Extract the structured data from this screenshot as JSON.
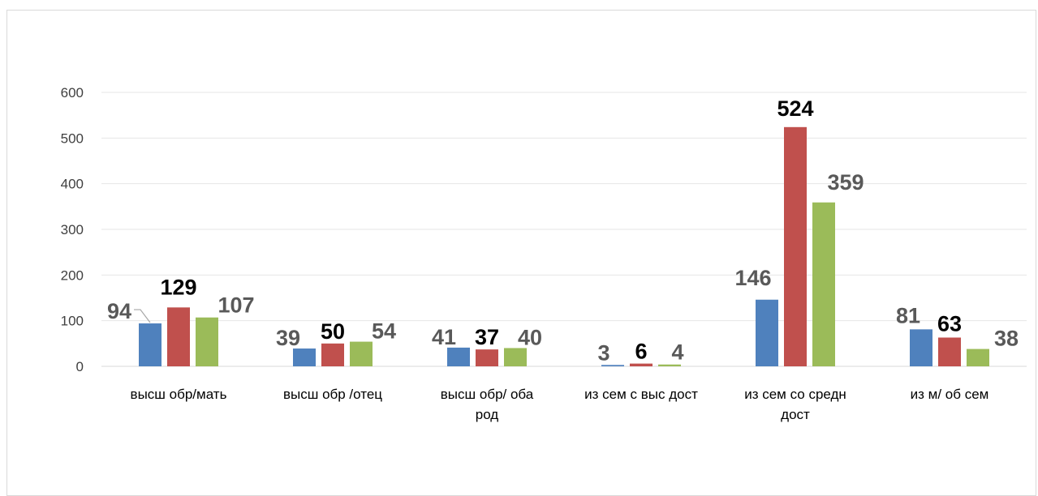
{
  "chart_data": {
    "type": "bar",
    "title": "",
    "xlabel": "",
    "ylabel": "",
    "ylim": [
      0,
      600
    ],
    "yticks": [
      "0",
      "100",
      "200",
      "300",
      "400",
      "500",
      "600"
    ],
    "grid": true,
    "legend": "none",
    "categories": [
      [
        "высш обр/мать"
      ],
      [
        "высш обр /отец"
      ],
      [
        "высш обр/ оба",
        "род"
      ],
      [
        "из сем с выс дост"
      ],
      [
        "из сем со средн",
        "дост"
      ],
      [
        "из м/ об сем"
      ]
    ],
    "series": [
      {
        "color": "#4f81bd",
        "label_color": "#595959",
        "values": [
          94,
          39,
          41,
          3,
          146,
          81
        ]
      },
      {
        "color": "#c0504d",
        "label_color": "#000000",
        "values": [
          129,
          50,
          37,
          6,
          524,
          63
        ]
      },
      {
        "color": "#9bbb59",
        "label_color": "#595959",
        "values": [
          107,
          54,
          40,
          4,
          359,
          38
        ]
      }
    ]
  }
}
